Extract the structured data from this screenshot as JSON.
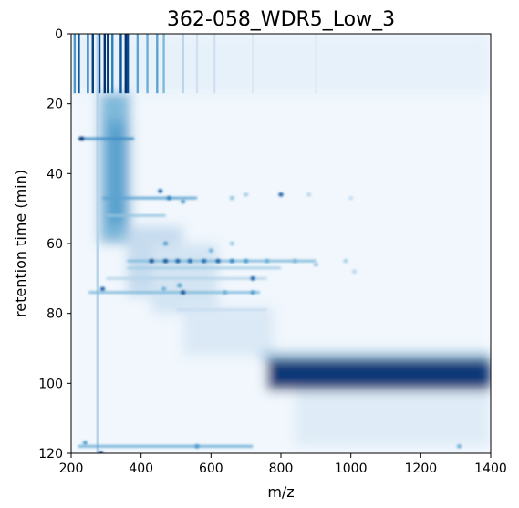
{
  "chart_data": {
    "type": "heatmap",
    "title": "362-058_WDR5_Low_3",
    "xlabel": "m/z",
    "ylabel": "retention time (min)",
    "xlim": [
      200,
      1400
    ],
    "ylim": [
      0,
      120
    ],
    "y_inverted": true,
    "x_ticks": [
      200,
      400,
      600,
      800,
      1000,
      1200,
      1400
    ],
    "y_ticks": [
      0,
      20,
      40,
      60,
      80,
      100,
      120
    ],
    "colormap": [
      "#f7fbff",
      "#deebf7",
      "#c6dbef",
      "#9ecae1",
      "#6baed6",
      "#4292c6",
      "#2171b5",
      "#08519c",
      "#08306b"
    ],
    "regions": [
      {
        "kind": "rect",
        "x": [
          200,
          1400
        ],
        "y": [
          0,
          17
        ],
        "intensity": 0.08
      },
      {
        "kind": "rect",
        "x": [
          200,
          1400
        ],
        "y": [
          17,
          120
        ],
        "intensity": 0.03
      },
      {
        "kind": "rect",
        "x": [
          280,
          370
        ],
        "y": [
          17,
          60
        ],
        "intensity": 0.45
      },
      {
        "kind": "rect",
        "x": [
          300,
          360
        ],
        "y": [
          25,
          55
        ],
        "intensity": 0.55
      },
      {
        "kind": "rect",
        "x": [
          360,
          520
        ],
        "y": [
          55,
          75
        ],
        "intensity": 0.25
      },
      {
        "kind": "rect",
        "x": [
          430,
          620
        ],
        "y": [
          60,
          80
        ],
        "intensity": 0.18
      },
      {
        "kind": "rect",
        "x": [
          520,
          780
        ],
        "y": [
          78,
          92
        ],
        "intensity": 0.14
      },
      {
        "kind": "rect",
        "x": [
          740,
          1400
        ],
        "y": [
          91,
          93
        ],
        "intensity": 0.4
      },
      {
        "kind": "rect",
        "x": [
          760,
          1400
        ],
        "y": [
          93,
          102
        ],
        "intensity": 0.97
      },
      {
        "kind": "rect",
        "x": [
          840,
          1400
        ],
        "y": [
          102,
          118
        ],
        "intensity": 0.12
      }
    ],
    "vertical_streaks": [
      {
        "x": 210,
        "y": [
          0,
          17
        ],
        "intensity": 0.6
      },
      {
        "x": 222,
        "y": [
          0,
          17
        ],
        "intensity": 0.85
      },
      {
        "x": 248,
        "y": [
          0,
          17
        ],
        "intensity": 0.7
      },
      {
        "x": 262,
        "y": [
          0,
          17
        ],
        "intensity": 0.95
      },
      {
        "x": 275,
        "y": [
          0,
          120
        ],
        "intensity": 0.3
      },
      {
        "x": 281,
        "y": [
          0,
          17
        ],
        "intensity": 0.9
      },
      {
        "x": 296,
        "y": [
          0,
          17
        ],
        "intensity": 1.0
      },
      {
        "x": 305,
        "y": [
          0,
          17
        ],
        "intensity": 0.95
      },
      {
        "x": 318,
        "y": [
          0,
          17
        ],
        "intensity": 0.7
      },
      {
        "x": 342,
        "y": [
          0,
          17
        ],
        "intensity": 0.85
      },
      {
        "x": 356,
        "y": [
          0,
          17
        ],
        "intensity": 1.0
      },
      {
        "x": 362,
        "y": [
          0,
          17
        ],
        "intensity": 0.9
      },
      {
        "x": 390,
        "y": [
          0,
          17
        ],
        "intensity": 0.55
      },
      {
        "x": 418,
        "y": [
          0,
          17
        ],
        "intensity": 0.5
      },
      {
        "x": 446,
        "y": [
          0,
          17
        ],
        "intensity": 0.55
      },
      {
        "x": 465,
        "y": [
          0,
          17
        ],
        "intensity": 0.45
      },
      {
        "x": 520,
        "y": [
          0,
          17
        ],
        "intensity": 0.3
      },
      {
        "x": 560,
        "y": [
          0,
          17
        ],
        "intensity": 0.2
      },
      {
        "x": 610,
        "y": [
          0,
          17
        ],
        "intensity": 0.2
      },
      {
        "x": 720,
        "y": [
          0,
          17
        ],
        "intensity": 0.15
      },
      {
        "x": 900,
        "y": [
          0,
          17
        ],
        "intensity": 0.12
      }
    ],
    "horizontal_streaks": [
      {
        "y": 30,
        "x": [
          220,
          380
        ],
        "intensity": 0.65
      },
      {
        "y": 47,
        "x": [
          290,
          560
        ],
        "intensity": 0.55
      },
      {
        "y": 52,
        "x": [
          300,
          470
        ],
        "intensity": 0.4
      },
      {
        "y": 65,
        "x": [
          360,
          900
        ],
        "intensity": 0.45
      },
      {
        "y": 67,
        "x": [
          360,
          800
        ],
        "intensity": 0.35
      },
      {
        "y": 70,
        "x": [
          300,
          760
        ],
        "intensity": 0.3
      },
      {
        "y": 74,
        "x": [
          250,
          740
        ],
        "intensity": 0.45
      },
      {
        "y": 79,
        "x": [
          500,
          760
        ],
        "intensity": 0.25
      },
      {
        "y": 118,
        "x": [
          220,
          720
        ],
        "intensity": 0.5
      }
    ],
    "spots": [
      {
        "x": 230,
        "y": 30,
        "intensity": 1.0
      },
      {
        "x": 455,
        "y": 45,
        "intensity": 0.8
      },
      {
        "x": 480,
        "y": 47,
        "intensity": 0.7
      },
      {
        "x": 520,
        "y": 48,
        "intensity": 0.6
      },
      {
        "x": 800,
        "y": 46,
        "intensity": 0.85
      },
      {
        "x": 660,
        "y": 47,
        "intensity": 0.4
      },
      {
        "x": 700,
        "y": 46,
        "intensity": 0.35
      },
      {
        "x": 880,
        "y": 46,
        "intensity": 0.3
      },
      {
        "x": 1000,
        "y": 47,
        "intensity": 0.25
      },
      {
        "x": 430,
        "y": 65,
        "intensity": 0.9
      },
      {
        "x": 470,
        "y": 65,
        "intensity": 0.9
      },
      {
        "x": 505,
        "y": 65,
        "intensity": 0.85
      },
      {
        "x": 540,
        "y": 65,
        "intensity": 0.8
      },
      {
        "x": 580,
        "y": 65,
        "intensity": 0.8
      },
      {
        "x": 620,
        "y": 65,
        "intensity": 0.85
      },
      {
        "x": 660,
        "y": 65,
        "intensity": 0.7
      },
      {
        "x": 700,
        "y": 65,
        "intensity": 0.6
      },
      {
        "x": 760,
        "y": 65,
        "intensity": 0.5
      },
      {
        "x": 840,
        "y": 65,
        "intensity": 0.45
      },
      {
        "x": 900,
        "y": 66,
        "intensity": 0.4
      },
      {
        "x": 600,
        "y": 62,
        "intensity": 0.5
      },
      {
        "x": 660,
        "y": 60,
        "intensity": 0.4
      },
      {
        "x": 470,
        "y": 60,
        "intensity": 0.6
      },
      {
        "x": 720,
        "y": 70,
        "intensity": 0.85
      },
      {
        "x": 510,
        "y": 72,
        "intensity": 0.6
      },
      {
        "x": 465,
        "y": 73,
        "intensity": 0.5
      },
      {
        "x": 290,
        "y": 73,
        "intensity": 0.85
      },
      {
        "x": 520,
        "y": 74,
        "intensity": 0.9
      },
      {
        "x": 640,
        "y": 74,
        "intensity": 0.5
      },
      {
        "x": 720,
        "y": 74,
        "intensity": 0.6
      },
      {
        "x": 985,
        "y": 65,
        "intensity": 0.35
      },
      {
        "x": 1010,
        "y": 68,
        "intensity": 0.3
      },
      {
        "x": 285,
        "y": 120,
        "intensity": 0.9
      },
      {
        "x": 240,
        "y": 117,
        "intensity": 0.6
      },
      {
        "x": 560,
        "y": 118,
        "intensity": 0.6
      },
      {
        "x": 1310,
        "y": 118,
        "intensity": 0.5
      }
    ]
  }
}
